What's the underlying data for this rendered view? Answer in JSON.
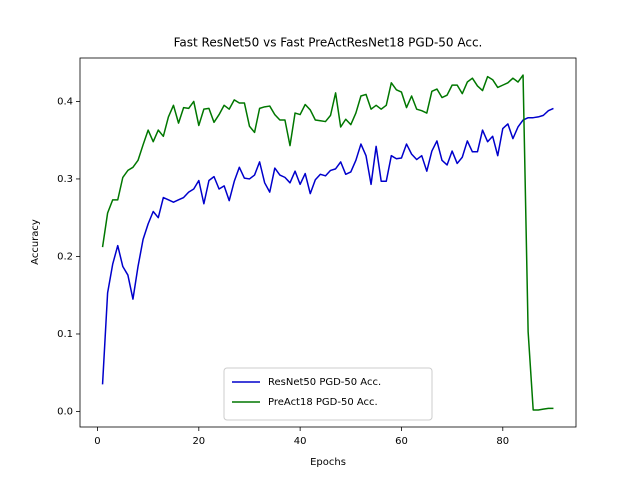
{
  "chart_data": {
    "type": "line",
    "title": "Fast ResNet50 vs Fast PreActResNet18 PGD-50 Acc.",
    "x_label": "Epochs",
    "y_label": "Accuracy",
    "x": [
      1,
      2,
      3,
      4,
      5,
      6,
      7,
      8,
      9,
      10,
      11,
      12,
      13,
      14,
      15,
      16,
      17,
      18,
      19,
      20,
      21,
      22,
      23,
      24,
      25,
      26,
      27,
      28,
      29,
      30,
      31,
      32,
      33,
      34,
      35,
      36,
      37,
      38,
      39,
      40,
      41,
      42,
      43,
      44,
      45,
      46,
      47,
      48,
      49,
      50,
      51,
      52,
      53,
      54,
      55,
      56,
      57,
      58,
      59,
      60,
      61,
      62,
      63,
      64,
      65,
      66,
      67,
      68,
      69,
      70,
      71,
      72,
      73,
      74,
      75,
      76,
      77,
      78,
      79,
      80,
      81,
      82,
      83,
      84,
      85,
      86,
      87,
      88,
      89,
      90
    ],
    "series": [
      {
        "name": "ResNet50 PGD-50 Acc.",
        "color": "#0000cc",
        "values": [
          0.035,
          0.153,
          0.19,
          0.214,
          0.187,
          0.176,
          0.145,
          0.187,
          0.222,
          0.242,
          0.258,
          0.25,
          0.276,
          0.273,
          0.27,
          0.273,
          0.276,
          0.283,
          0.287,
          0.298,
          0.268,
          0.298,
          0.303,
          0.287,
          0.291,
          0.272,
          0.297,
          0.315,
          0.301,
          0.3,
          0.305,
          0.322,
          0.295,
          0.283,
          0.314,
          0.305,
          0.302,
          0.295,
          0.31,
          0.293,
          0.307,
          0.281,
          0.299,
          0.306,
          0.304,
          0.311,
          0.313,
          0.322,
          0.306,
          0.309,
          0.324,
          0.345,
          0.33,
          0.293,
          0.342,
          0.297,
          0.297,
          0.33,
          0.326,
          0.327,
          0.345,
          0.332,
          0.325,
          0.33,
          0.31,
          0.336,
          0.349,
          0.324,
          0.318,
          0.336,
          0.32,
          0.328,
          0.349,
          0.335,
          0.335,
          0.363,
          0.348,
          0.355,
          0.33,
          0.365,
          0.371,
          0.352,
          0.367,
          0.376,
          0.379,
          0.379,
          0.38,
          0.382,
          0.388,
          0.391
        ]
      },
      {
        "name": "PreAct18 PGD-50 Acc.",
        "color": "#007700",
        "values": [
          0.212,
          0.256,
          0.273,
          0.273,
          0.302,
          0.311,
          0.315,
          0.324,
          0.344,
          0.363,
          0.348,
          0.363,
          0.355,
          0.38,
          0.395,
          0.372,
          0.392,
          0.391,
          0.4,
          0.369,
          0.39,
          0.391,
          0.373,
          0.383,
          0.395,
          0.39,
          0.402,
          0.398,
          0.398,
          0.368,
          0.36,
          0.391,
          0.393,
          0.394,
          0.383,
          0.376,
          0.376,
          0.343,
          0.385,
          0.383,
          0.396,
          0.389,
          0.376,
          0.375,
          0.374,
          0.382,
          0.411,
          0.367,
          0.377,
          0.37,
          0.385,
          0.407,
          0.409,
          0.39,
          0.395,
          0.39,
          0.395,
          0.424,
          0.415,
          0.412,
          0.392,
          0.407,
          0.39,
          0.388,
          0.385,
          0.413,
          0.416,
          0.405,
          0.408,
          0.421,
          0.421,
          0.41,
          0.425,
          0.43,
          0.42,
          0.414,
          0.432,
          0.428,
          0.418,
          0.421,
          0.424,
          0.43,
          0.425,
          0.434,
          0.103,
          0.002,
          0.002,
          0.003,
          0.004,
          0.004
        ]
      }
    ],
    "xlim": [
      -3.45,
      94.45
    ],
    "ylim": [
      -0.02,
      0.456
    ],
    "xticks": [
      0,
      20,
      40,
      60,
      80
    ],
    "yticks": [
      {
        "value": 0,
        "label": "0.0"
      },
      0.1,
      0.2,
      0.3,
      0.4
    ],
    "legend": "lower center"
  }
}
